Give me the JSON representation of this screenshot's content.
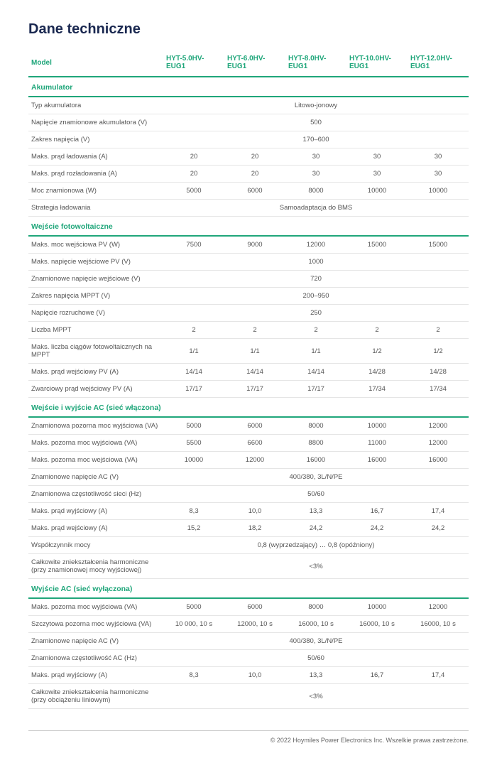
{
  "title": "Dane techniczne",
  "footer": "© 2022 Hoymiles Power Electronics Inc. Wszelkie prawa zastrzeżone.",
  "headers": [
    "Model",
    "HYT-5.0HV-EUG1",
    "HYT-6.0HV-EUG1",
    "HYT-8.0HV-EUG1",
    "HYT-10.0HV-EUG1",
    "HYT-12.0HV-EUG1"
  ],
  "sections": [
    {
      "title": "Akumulator",
      "rows": [
        {
          "label": "Typ akumulatora",
          "span": "Litowo-jonowy"
        },
        {
          "label": "Napięcie znamionowe akumulatora (V)",
          "span": "500"
        },
        {
          "label": "Zakres napięcia (V)",
          "span": "170–600"
        },
        {
          "label": "Maks. prąd ładowania (A)",
          "cells": [
            "20",
            "20",
            "30",
            "30",
            "30"
          ]
        },
        {
          "label": "Maks. prąd rozładowania (A)",
          "cells": [
            "20",
            "20",
            "30",
            "30",
            "30"
          ]
        },
        {
          "label": "Moc znamionowa (W)",
          "cells": [
            "5000",
            "6000",
            "8000",
            "10000",
            "10000"
          ]
        },
        {
          "label": "Strategia ładowania",
          "span": "Samoadaptacja do BMS"
        }
      ]
    },
    {
      "title": "Wejście fotowoltaiczne",
      "rows": [
        {
          "label": "Maks. moc wejściowa PV (W)",
          "cells": [
            "7500",
            "9000",
            "12000",
            "15000",
            "15000"
          ]
        },
        {
          "label": "Maks. napięcie wejściowe PV (V)",
          "span": "1000"
        },
        {
          "label": "Znamionowe napięcie wejściowe (V)",
          "span": "720"
        },
        {
          "label": "Zakres napięcia MPPT (V)",
          "span": "200–950"
        },
        {
          "label": "Napięcie rozruchowe (V)",
          "span": "250"
        },
        {
          "label": "Liczba MPPT",
          "cells": [
            "2",
            "2",
            "2",
            "2",
            "2"
          ]
        },
        {
          "label": "Maks. liczba ciągów fotowoltaicznych na MPPT",
          "cells": [
            "1/1",
            "1/1",
            "1/1",
            "1/2",
            "1/2"
          ]
        },
        {
          "label": "Maks. prąd wejściowy PV (A)",
          "cells": [
            "14/14",
            "14/14",
            "14/14",
            "14/28",
            "14/28"
          ]
        },
        {
          "label": "Zwarciowy prąd wejściowy PV (A)",
          "cells": [
            "17/17",
            "17/17",
            "17/17",
            "17/34",
            "17/34"
          ]
        }
      ]
    },
    {
      "title": "Wejście i wyjście AC (sieć włączona)",
      "rows": [
        {
          "label": "Znamionowa pozorna moc wyjściowa (VA)",
          "cells": [
            "5000",
            "6000",
            "8000",
            "10000",
            "12000"
          ]
        },
        {
          "label": "Maks. pozorna moc wyjściowa (VA)",
          "cells": [
            "5500",
            "6600",
            "8800",
            "11000",
            "12000"
          ]
        },
        {
          "label": "Maks. pozorna moc wejściowa (VA)",
          "cells": [
            "10000",
            "12000",
            "16000",
            "16000",
            "16000"
          ]
        },
        {
          "label": "Znamionowe napięcie AC (V)",
          "span": "400/380, 3L/N/PE"
        },
        {
          "label": "Znamionowa częstotliwość sieci (Hz)",
          "span": "50/60"
        },
        {
          "label": "Maks. prąd wyjściowy (A)",
          "cells": [
            "8,3",
            "10,0",
            "13,3",
            "16,7",
            "17,4"
          ]
        },
        {
          "label": "Maks. prąd wejściowy (A)",
          "cells": [
            "15,2",
            "18,2",
            "24,2",
            "24,2",
            "24,2"
          ]
        },
        {
          "label": "Współczynnik mocy",
          "span": "0,8 (wyprzedzający) … 0,8 (opóźniony)"
        },
        {
          "label": "Całkowite zniekształcenia harmoniczne (przy znamionowej mocy wyjściowej)",
          "span": "<3%"
        }
      ]
    },
    {
      "title": "Wyjście AC (sieć wyłączona)",
      "rows": [
        {
          "label": "Maks. pozorna moc wyjściowa (VA)",
          "cells": [
            "5000",
            "6000",
            "8000",
            "10000",
            "12000"
          ]
        },
        {
          "label": "Szczytowa pozorna moc wyjściowa (VA)",
          "cells": [
            "10 000, 10 s",
            "12000, 10 s",
            "16000, 10 s",
            "16000, 10 s",
            "16000, 10 s"
          ]
        },
        {
          "label": "Znamionowe napięcie AC (V)",
          "span": "400/380, 3L/N/PE"
        },
        {
          "label": "Znamionowa częstotliwość AC (Hz)",
          "span": "50/60"
        },
        {
          "label": "Maks. prąd wyjściowy (A)",
          "cells": [
            "8,3",
            "10,0",
            "13,3",
            "16,7",
            "17,4"
          ]
        },
        {
          "label": "Całkowite zniekształcenia harmoniczne (przy obciążeniu liniowym)",
          "span": "<3%"
        }
      ]
    }
  ]
}
